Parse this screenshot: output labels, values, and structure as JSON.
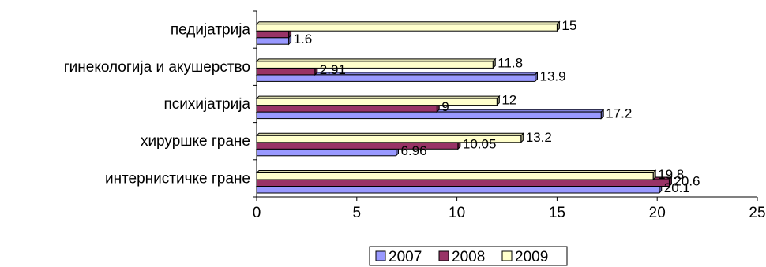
{
  "chart_data": {
    "type": "bar",
    "orientation": "horizontal",
    "title": "",
    "xlabel": "",
    "ylabel": "",
    "categories": [
      "интернистичке гране",
      "хируршке гране",
      "психијатрија",
      "гинекологија и акушерство",
      "педијатрија"
    ],
    "series": [
      {
        "name": "2007",
        "color": "#9999ff",
        "values": [
          20.1,
          6.96,
          17.2,
          13.9,
          1.6
        ],
        "labels": [
          "20.1",
          "6.96",
          "17.2",
          "13.9",
          "1.6"
        ]
      },
      {
        "name": "2008",
        "color": "#993366",
        "values": [
          20.6,
          10.05,
          9,
          2.91,
          1.6
        ],
        "labels": [
          "20.6",
          "10.05",
          "9",
          "2.91",
          ""
        ]
      },
      {
        "name": "2009",
        "color": "#ffffcc",
        "values": [
          19.8,
          13.2,
          12,
          11.8,
          15
        ],
        "labels": [
          "19.8",
          "13.2",
          "12",
          "11.8",
          "15"
        ]
      }
    ],
    "xlim": [
      0,
      25
    ],
    "xticks": [
      "0",
      "5",
      "10",
      "15",
      "20",
      "25"
    ],
    "grid": false,
    "legend_position": "bottom"
  }
}
